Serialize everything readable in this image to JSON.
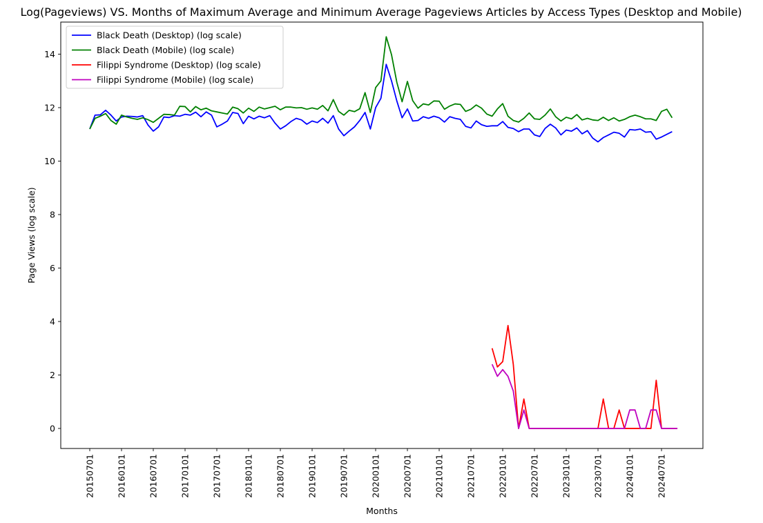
{
  "chart_data": {
    "type": "line",
    "title": "Log(Pageviews) VS. Months of Maximum Average and Minimum Average Pageviews Articles by Access Types (Desktop and Mobile)",
    "xlabel": "Months",
    "ylabel": "Page Views (log scale)",
    "x_start": "2015-07",
    "x_ticks": [
      "20150701",
      "20160101",
      "20160701",
      "20170101",
      "20170701",
      "20180101",
      "20180701",
      "20190101",
      "20190701",
      "20200101",
      "20200701",
      "20210101",
      "20210701",
      "20220101",
      "20220701",
      "20230101",
      "20230701",
      "20240101",
      "20240701"
    ],
    "y_ticks": [
      0,
      2,
      4,
      6,
      8,
      10,
      12,
      14
    ],
    "ylim": [
      -0.75,
      15.2
    ],
    "grid": false,
    "legend_position": "top-left",
    "series": [
      {
        "name": "Black Death (Desktop) (log scale)",
        "color": "#0000ff",
        "start": "2015-07",
        "values": [
          11.2,
          11.72,
          11.73,
          11.9,
          11.72,
          11.5,
          11.65,
          11.68,
          11.67,
          11.65,
          11.7,
          11.35,
          11.12,
          11.28,
          11.65,
          11.63,
          11.7,
          11.68,
          11.75,
          11.72,
          11.83,
          11.66,
          11.84,
          11.72,
          11.28,
          11.38,
          11.5,
          11.82,
          11.78,
          11.4,
          11.68,
          11.58,
          11.68,
          11.62,
          11.7,
          11.42,
          11.2,
          11.32,
          11.48,
          11.6,
          11.54,
          11.38,
          11.5,
          11.44,
          11.6,
          11.42,
          11.7,
          11.2,
          10.95,
          11.12,
          11.28,
          11.52,
          11.82,
          11.2,
          12.0,
          12.35,
          13.62,
          13.0,
          12.25,
          11.62,
          11.95,
          11.5,
          11.52,
          11.66,
          11.6,
          11.68,
          11.62,
          11.46,
          11.66,
          11.6,
          11.56,
          11.3,
          11.24,
          11.5,
          11.36,
          11.3,
          11.32,
          11.32,
          11.48,
          11.26,
          11.22,
          11.1,
          11.2,
          11.2,
          10.98,
          10.92,
          11.22,
          11.38,
          11.24,
          10.98,
          11.16,
          11.12,
          11.24,
          11.02,
          11.14,
          10.86,
          10.72,
          10.88,
          10.98,
          11.08,
          11.04,
          10.9,
          11.18,
          11.16,
          11.2,
          11.08,
          11.1,
          10.82,
          10.9,
          11.0,
          11.1
        ]
      },
      {
        "name": "Black Death (Mobile) (log scale)",
        "color": "#008000",
        "start": "2015-07",
        "values": [
          11.2,
          11.6,
          11.68,
          11.78,
          11.52,
          11.38,
          11.72,
          11.65,
          11.6,
          11.56,
          11.62,
          11.55,
          11.45,
          11.6,
          11.75,
          11.74,
          11.72,
          12.05,
          12.04,
          11.84,
          12.04,
          11.92,
          11.98,
          11.88,
          11.84,
          11.8,
          11.76,
          12.02,
          11.96,
          11.8,
          11.98,
          11.86,
          12.02,
          11.95,
          12.0,
          12.05,
          11.92,
          12.02,
          12.02,
          11.99,
          12.0,
          11.94,
          11.99,
          11.94,
          12.08,
          11.88,
          12.3,
          11.86,
          11.72,
          11.9,
          11.85,
          11.96,
          12.56,
          11.82,
          12.75,
          13.0,
          14.65,
          13.98,
          12.95,
          12.22,
          12.98,
          12.26,
          11.98,
          12.14,
          12.1,
          12.25,
          12.24,
          11.94,
          12.06,
          12.14,
          12.12,
          11.86,
          11.94,
          12.1,
          11.98,
          11.76,
          11.68,
          11.95,
          12.15,
          11.68,
          11.52,
          11.46,
          11.6,
          11.8,
          11.58,
          11.56,
          11.72,
          11.95,
          11.66,
          11.5,
          11.64,
          11.58,
          11.74,
          11.54,
          11.6,
          11.54,
          11.52,
          11.64,
          11.52,
          11.62,
          11.5,
          11.56,
          11.66,
          11.72,
          11.66,
          11.58,
          11.58,
          11.52,
          11.86,
          11.94,
          11.62
        ]
      },
      {
        "name": "Filippi Syndrome (Desktop) (log scale)",
        "color": "#ff0000",
        "start": "2021-11",
        "values": [
          3.0,
          2.3,
          2.5,
          3.85,
          2.4,
          0.0,
          1.1,
          0.0,
          0.0,
          0.0,
          0.0,
          0.0,
          0.0,
          0.0,
          0.0,
          0.0,
          0.0,
          0.0,
          0.0,
          0.0,
          0.0,
          1.1,
          0.0,
          0.0,
          0.69,
          0.0,
          0.0,
          0.0,
          0.0,
          0.0,
          0.0,
          1.8,
          0.0,
          0.0,
          0.0,
          0.0
        ]
      },
      {
        "name": "Filippi Syndrome (Mobile) (log scale)",
        "color": "#bf00bf",
        "start": "2021-11",
        "values": [
          2.4,
          1.95,
          2.2,
          1.95,
          1.4,
          0.0,
          0.69,
          0.0,
          0.0,
          0.0,
          0.0,
          0.0,
          0.0,
          0.0,
          0.0,
          0.0,
          0.0,
          0.0,
          0.0,
          0.0,
          0.0,
          0.0,
          0.0,
          0.0,
          0.0,
          0.0,
          0.69,
          0.69,
          0.0,
          0.0,
          0.69,
          0.69,
          0.0,
          0.0,
          0.0,
          0.0
        ]
      }
    ]
  }
}
